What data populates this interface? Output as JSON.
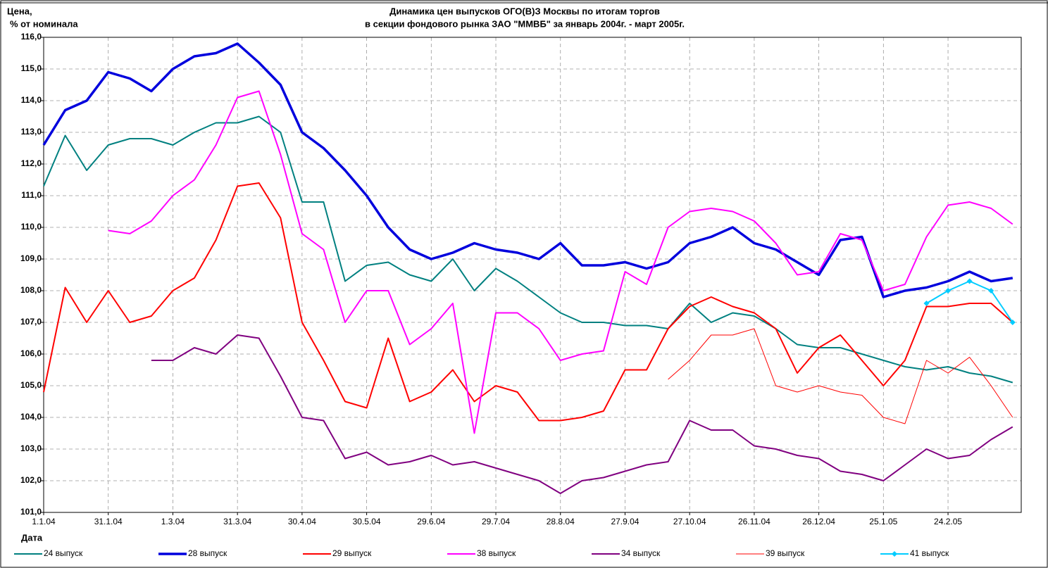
{
  "chart_data": {
    "type": "line",
    "title": [
      "Динамика цен выпусков ОГО(В)З Москвы по итогам торгов",
      "в секции фондового рынка ЗАО \"ММВБ\" за январь 2004г. - март 2005г."
    ],
    "y_label": [
      "Цена,",
      "% от номинала"
    ],
    "x_label": "Дата",
    "grid": true,
    "legend": "bottom",
    "xlim": [
      "2004-01-01",
      "2005-03-30"
    ],
    "xticks": [
      {
        "value": "2004-01-01",
        "label": "1.1.04"
      },
      {
        "value": "2004-01-31",
        "label": "31.1.04"
      },
      {
        "value": "2004-03-01",
        "label": "1.3.04"
      },
      {
        "value": "2004-03-31",
        "label": "31.3.04"
      },
      {
        "value": "2004-04-30",
        "label": "30.4.04"
      },
      {
        "value": "2004-05-30",
        "label": "30.5.04"
      },
      {
        "value": "2004-06-29",
        "label": "29.6.04"
      },
      {
        "value": "2004-07-29",
        "label": "29.7.04"
      },
      {
        "value": "2004-08-28",
        "label": "28.8.04"
      },
      {
        "value": "2004-09-27",
        "label": "27.9.04"
      },
      {
        "value": "2004-10-27",
        "label": "27.10.04"
      },
      {
        "value": "2004-11-26",
        "label": "26.11.04"
      },
      {
        "value": "2004-12-26",
        "label": "26.12.04"
      },
      {
        "value": "2005-01-25",
        "label": "25.1.05"
      },
      {
        "value": "2005-02-24",
        "label": "24.2.05"
      }
    ],
    "ylim": [
      101,
      116
    ],
    "yticks": [
      {
        "value": 101,
        "label": "101,0"
      },
      {
        "value": 102,
        "label": "102,0"
      },
      {
        "value": 103,
        "label": "103,0"
      },
      {
        "value": 104,
        "label": "104,0"
      },
      {
        "value": 105,
        "label": "105,0"
      },
      {
        "value": 106,
        "label": "106,0"
      },
      {
        "value": 107,
        "label": "107,0"
      },
      {
        "value": 108,
        "label": "108,0"
      },
      {
        "value": 109,
        "label": "109,0"
      },
      {
        "value": 110,
        "label": "110,0"
      },
      {
        "value": 111,
        "label": "111,0"
      },
      {
        "value": 112,
        "label": "112,0"
      },
      {
        "value": 113,
        "label": "113,0"
      },
      {
        "value": 114,
        "label": "114,0"
      },
      {
        "value": 115,
        "label": "115,0"
      },
      {
        "value": 116,
        "label": "116,0"
      }
    ],
    "x": [
      "2004-01-01",
      "2004-01-11",
      "2004-01-21",
      "2004-01-31",
      "2004-02-10",
      "2004-02-20",
      "2004-03-01",
      "2004-03-11",
      "2004-03-21",
      "2004-03-31",
      "2004-04-10",
      "2004-04-20",
      "2004-04-30",
      "2004-05-10",
      "2004-05-20",
      "2004-05-30",
      "2004-06-09",
      "2004-06-19",
      "2004-06-29",
      "2004-07-09",
      "2004-07-19",
      "2004-07-29",
      "2004-08-08",
      "2004-08-18",
      "2004-08-28",
      "2004-09-07",
      "2004-09-17",
      "2004-09-27",
      "2004-10-07",
      "2004-10-17",
      "2004-10-27",
      "2004-11-06",
      "2004-11-16",
      "2004-11-26",
      "2004-12-06",
      "2004-12-16",
      "2004-12-26",
      "2005-01-05",
      "2005-01-15",
      "2005-01-25",
      "2005-02-04",
      "2005-02-14",
      "2005-02-24",
      "2005-03-06",
      "2005-03-16",
      "2005-03-26"
    ],
    "series": [
      {
        "name": "24 выпуск",
        "color": "#008080",
        "line_width": 2,
        "values": [
          111.3,
          112.9,
          111.8,
          112.6,
          112.8,
          112.8,
          112.6,
          113.0,
          113.3,
          113.3,
          113.5,
          113.0,
          110.8,
          110.8,
          108.3,
          108.8,
          108.9,
          108.5,
          108.3,
          109.0,
          108.0,
          108.7,
          108.3,
          107.8,
          107.3,
          107.0,
          107.0,
          106.9,
          106.9,
          106.8,
          107.6,
          107.0,
          107.3,
          107.2,
          106.8,
          106.3,
          106.2,
          106.2,
          106.0,
          105.8,
          105.6,
          105.5,
          105.6,
          105.4,
          105.3,
          105.1
        ]
      },
      {
        "name": "28 выпуск",
        "color": "#0000dd",
        "line_width": 3.5,
        "values": [
          112.6,
          113.7,
          114.0,
          114.9,
          114.7,
          114.3,
          115.0,
          115.4,
          115.5,
          115.8,
          115.2,
          114.5,
          113.0,
          112.5,
          111.8,
          111.0,
          110.0,
          109.3,
          109.0,
          109.2,
          109.5,
          109.3,
          109.2,
          109.0,
          109.5,
          108.8,
          108.8,
          108.9,
          108.7,
          108.9,
          109.5,
          109.7,
          110.0,
          109.5,
          109.3,
          108.9,
          108.5,
          109.6,
          109.7,
          107.8,
          108.0,
          108.1,
          108.3,
          108.6,
          108.3,
          108.4
        ]
      },
      {
        "name": "29 выпуск",
        "color": "#ff0000",
        "line_width": 2,
        "values": [
          104.8,
          108.1,
          107.0,
          108.0,
          107.0,
          107.2,
          108.0,
          108.4,
          109.6,
          111.3,
          111.4,
          110.3,
          107.0,
          105.8,
          104.5,
          104.3,
          106.5,
          104.5,
          104.8,
          105.5,
          104.5,
          105.0,
          104.8,
          103.9,
          103.9,
          104.0,
          104.2,
          105.5,
          105.5,
          106.8,
          107.5,
          107.8,
          107.5,
          107.3,
          106.8,
          105.4,
          106.2,
          106.6,
          105.8,
          105.0,
          105.8,
          107.5,
          107.5,
          107.6,
          107.6,
          107.0
        ]
      },
      {
        "name": "38 выпуск",
        "color": "#ff00ff",
        "line_width": 2,
        "values": [
          null,
          null,
          null,
          109.9,
          109.8,
          110.2,
          111.0,
          111.5,
          112.6,
          114.1,
          114.3,
          112.3,
          109.8,
          109.3,
          107.0,
          108.0,
          108.0,
          106.3,
          106.8,
          107.6,
          103.5,
          107.3,
          107.3,
          106.8,
          105.8,
          106.0,
          106.1,
          108.6,
          108.2,
          110.0,
          110.5,
          110.6,
          110.5,
          110.2,
          109.5,
          108.5,
          108.6,
          109.8,
          109.6,
          108.0,
          108.2,
          109.7,
          110.7,
          110.8,
          110.6,
          110.1
        ]
      },
      {
        "name": "34 выпуск",
        "color": "#800080",
        "line_width": 2,
        "values": [
          null,
          null,
          null,
          null,
          null,
          105.8,
          105.8,
          106.2,
          106.0,
          106.6,
          106.5,
          105.3,
          104.0,
          103.9,
          102.7,
          102.9,
          102.5,
          102.6,
          102.8,
          102.5,
          102.6,
          102.4,
          102.2,
          102.0,
          101.6,
          102.0,
          102.1,
          102.3,
          102.5,
          102.6,
          103.9,
          103.6,
          103.6,
          103.1,
          103.0,
          102.8,
          102.7,
          102.3,
          102.2,
          102.0,
          102.5,
          103.0,
          102.7,
          102.8,
          103.3,
          103.7
        ]
      },
      {
        "name": "39 выпуск",
        "color": "#ff0000",
        "line_width": 1,
        "values": [
          null,
          null,
          null,
          null,
          null,
          null,
          null,
          null,
          null,
          null,
          null,
          null,
          null,
          null,
          null,
          null,
          null,
          null,
          null,
          null,
          null,
          null,
          null,
          null,
          null,
          null,
          null,
          null,
          null,
          105.2,
          105.8,
          106.6,
          106.6,
          106.8,
          105.0,
          104.8,
          105.0,
          104.8,
          104.7,
          104.0,
          103.8,
          105.8,
          105.4,
          105.9,
          105.0,
          104.0
        ]
      },
      {
        "name": "41 выпуск",
        "color": "#00ccff",
        "line_width": 2,
        "marker": "diamond",
        "values": [
          null,
          null,
          null,
          null,
          null,
          null,
          null,
          null,
          null,
          null,
          null,
          null,
          null,
          null,
          null,
          null,
          null,
          null,
          null,
          null,
          null,
          null,
          null,
          null,
          null,
          null,
          null,
          null,
          null,
          null,
          null,
          null,
          null,
          null,
          null,
          null,
          null,
          null,
          null,
          null,
          null,
          107.6,
          108.0,
          108.3,
          108.0,
          107.0
        ]
      }
    ]
  }
}
